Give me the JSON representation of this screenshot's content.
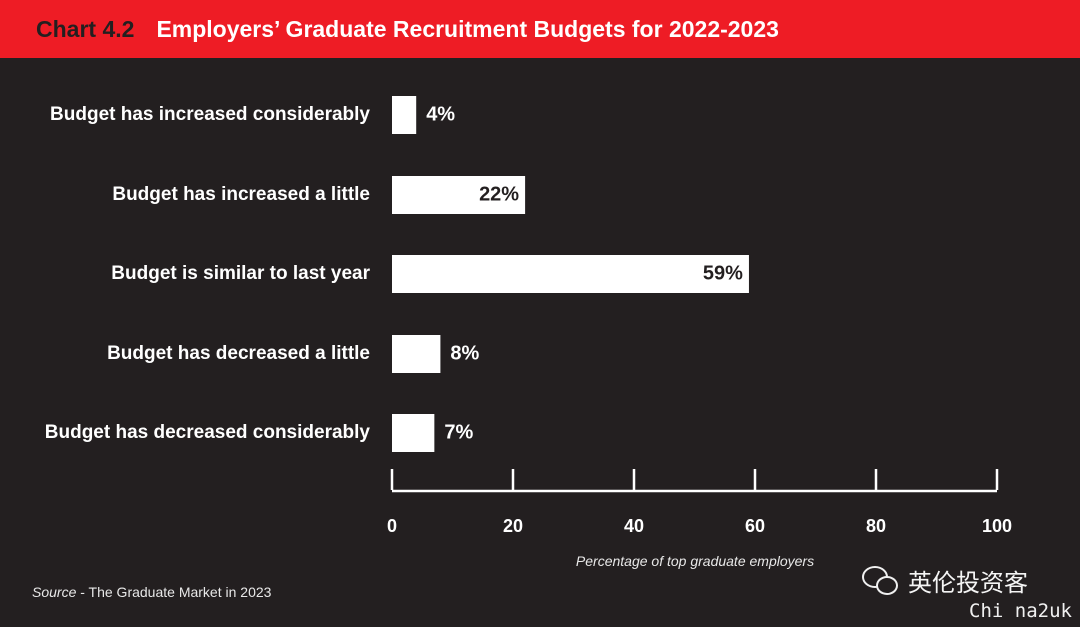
{
  "header": {
    "chart_number": "Chart 4.2",
    "title": "Employers’ Graduate Recruitment Budgets for 2022-2023"
  },
  "chart_data": {
    "type": "bar",
    "orientation": "horizontal",
    "title": "Employers’ Graduate Recruitment Budgets for 2022-2023",
    "categories": [
      "Budget has increased considerably",
      "Budget has increased a little",
      "Budget is similar to last year",
      "Budget has decreased a little",
      "Budget has decreased considerably"
    ],
    "values": [
      4,
      22,
      59,
      8,
      7
    ],
    "value_labels": [
      "4%",
      "22%",
      "59%",
      "8%",
      "7%"
    ],
    "xlabel": "Percentage of top graduate employers",
    "xlim": [
      0,
      100
    ],
    "xticks": [
      0,
      20,
      40,
      60,
      80,
      100
    ],
    "grid": false,
    "bar_color": "#ffffff",
    "background_color": "#231f20",
    "accent_color": "#ee1c25"
  },
  "source": {
    "label": "Source",
    "text": " - The Graduate Market in 2023"
  },
  "watermark": {
    "icon": "wechat-icon",
    "text": "英伦投资客",
    "subtext": "Chi na2uk"
  }
}
